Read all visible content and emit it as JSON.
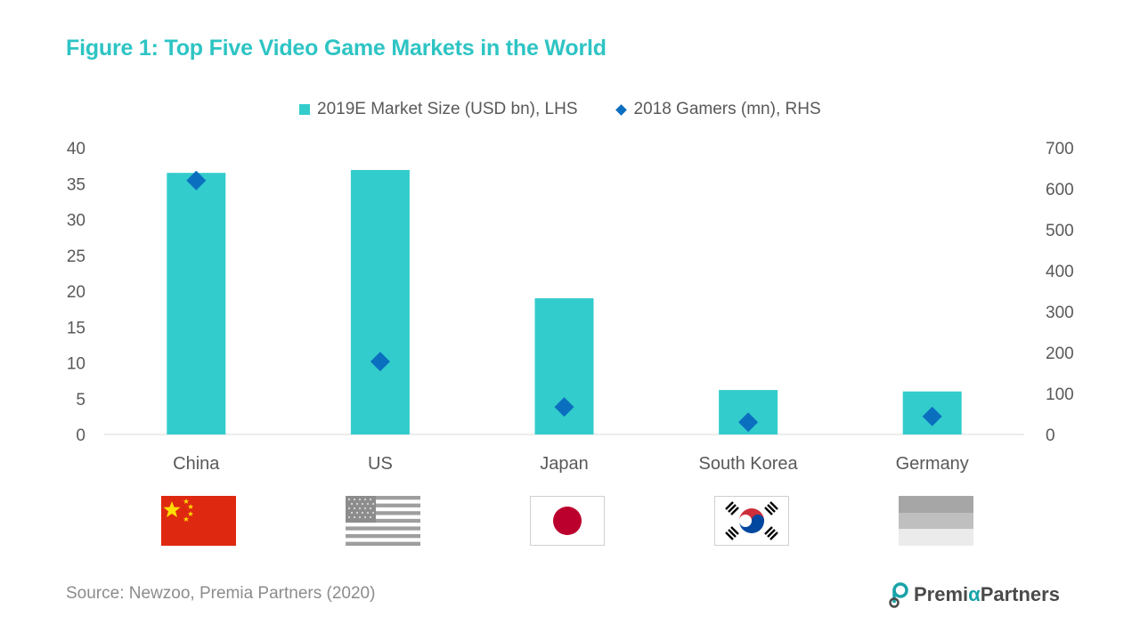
{
  "title": "Figure 1: Top Five Video Game Markets in the World",
  "source": "Source: Newzoo, Premia Partners (2020)",
  "logo": {
    "part1": "Premi",
    "alpha": "α",
    "part2": "Partners"
  },
  "colors": {
    "title": "#2ec4c4",
    "bar": "#33cccc",
    "diamond": "#0b6fbf",
    "axis": "#d9d9d9",
    "text": "#595959"
  },
  "chart_data": {
    "type": "bar",
    "categories": [
      "China",
      "US",
      "Japan",
      "South Korea",
      "Germany"
    ],
    "series": [
      {
        "name": "2019E Market Size (USD bn), LHS",
        "kind": "bar",
        "axis": "left",
        "values": [
          36.5,
          36.9,
          19.0,
          6.2,
          6.0
        ]
      },
      {
        "name": "2018 Gamers (mn), RHS",
        "kind": "diamond",
        "axis": "right",
        "values": [
          620,
          178,
          67,
          30,
          44
        ]
      }
    ],
    "y_left": {
      "min": 0,
      "max": 40,
      "ticks": [
        "0",
        "5",
        "10",
        "15",
        "20",
        "25",
        "30",
        "35",
        "40"
      ]
    },
    "y_right": {
      "min": 0,
      "max": 700,
      "ticks": [
        "0",
        "100",
        "200",
        "300",
        "400",
        "500",
        "600",
        "700"
      ]
    },
    "legend_position": "top-center",
    "grid": false
  },
  "flags": [
    {
      "country": "China",
      "icon": "china-flag-icon"
    },
    {
      "country": "US",
      "icon": "us-flag-icon"
    },
    {
      "country": "Japan",
      "icon": "japan-flag-icon"
    },
    {
      "country": "South Korea",
      "icon": "south-korea-flag-icon"
    },
    {
      "country": "Germany",
      "icon": "germany-flag-icon"
    }
  ]
}
